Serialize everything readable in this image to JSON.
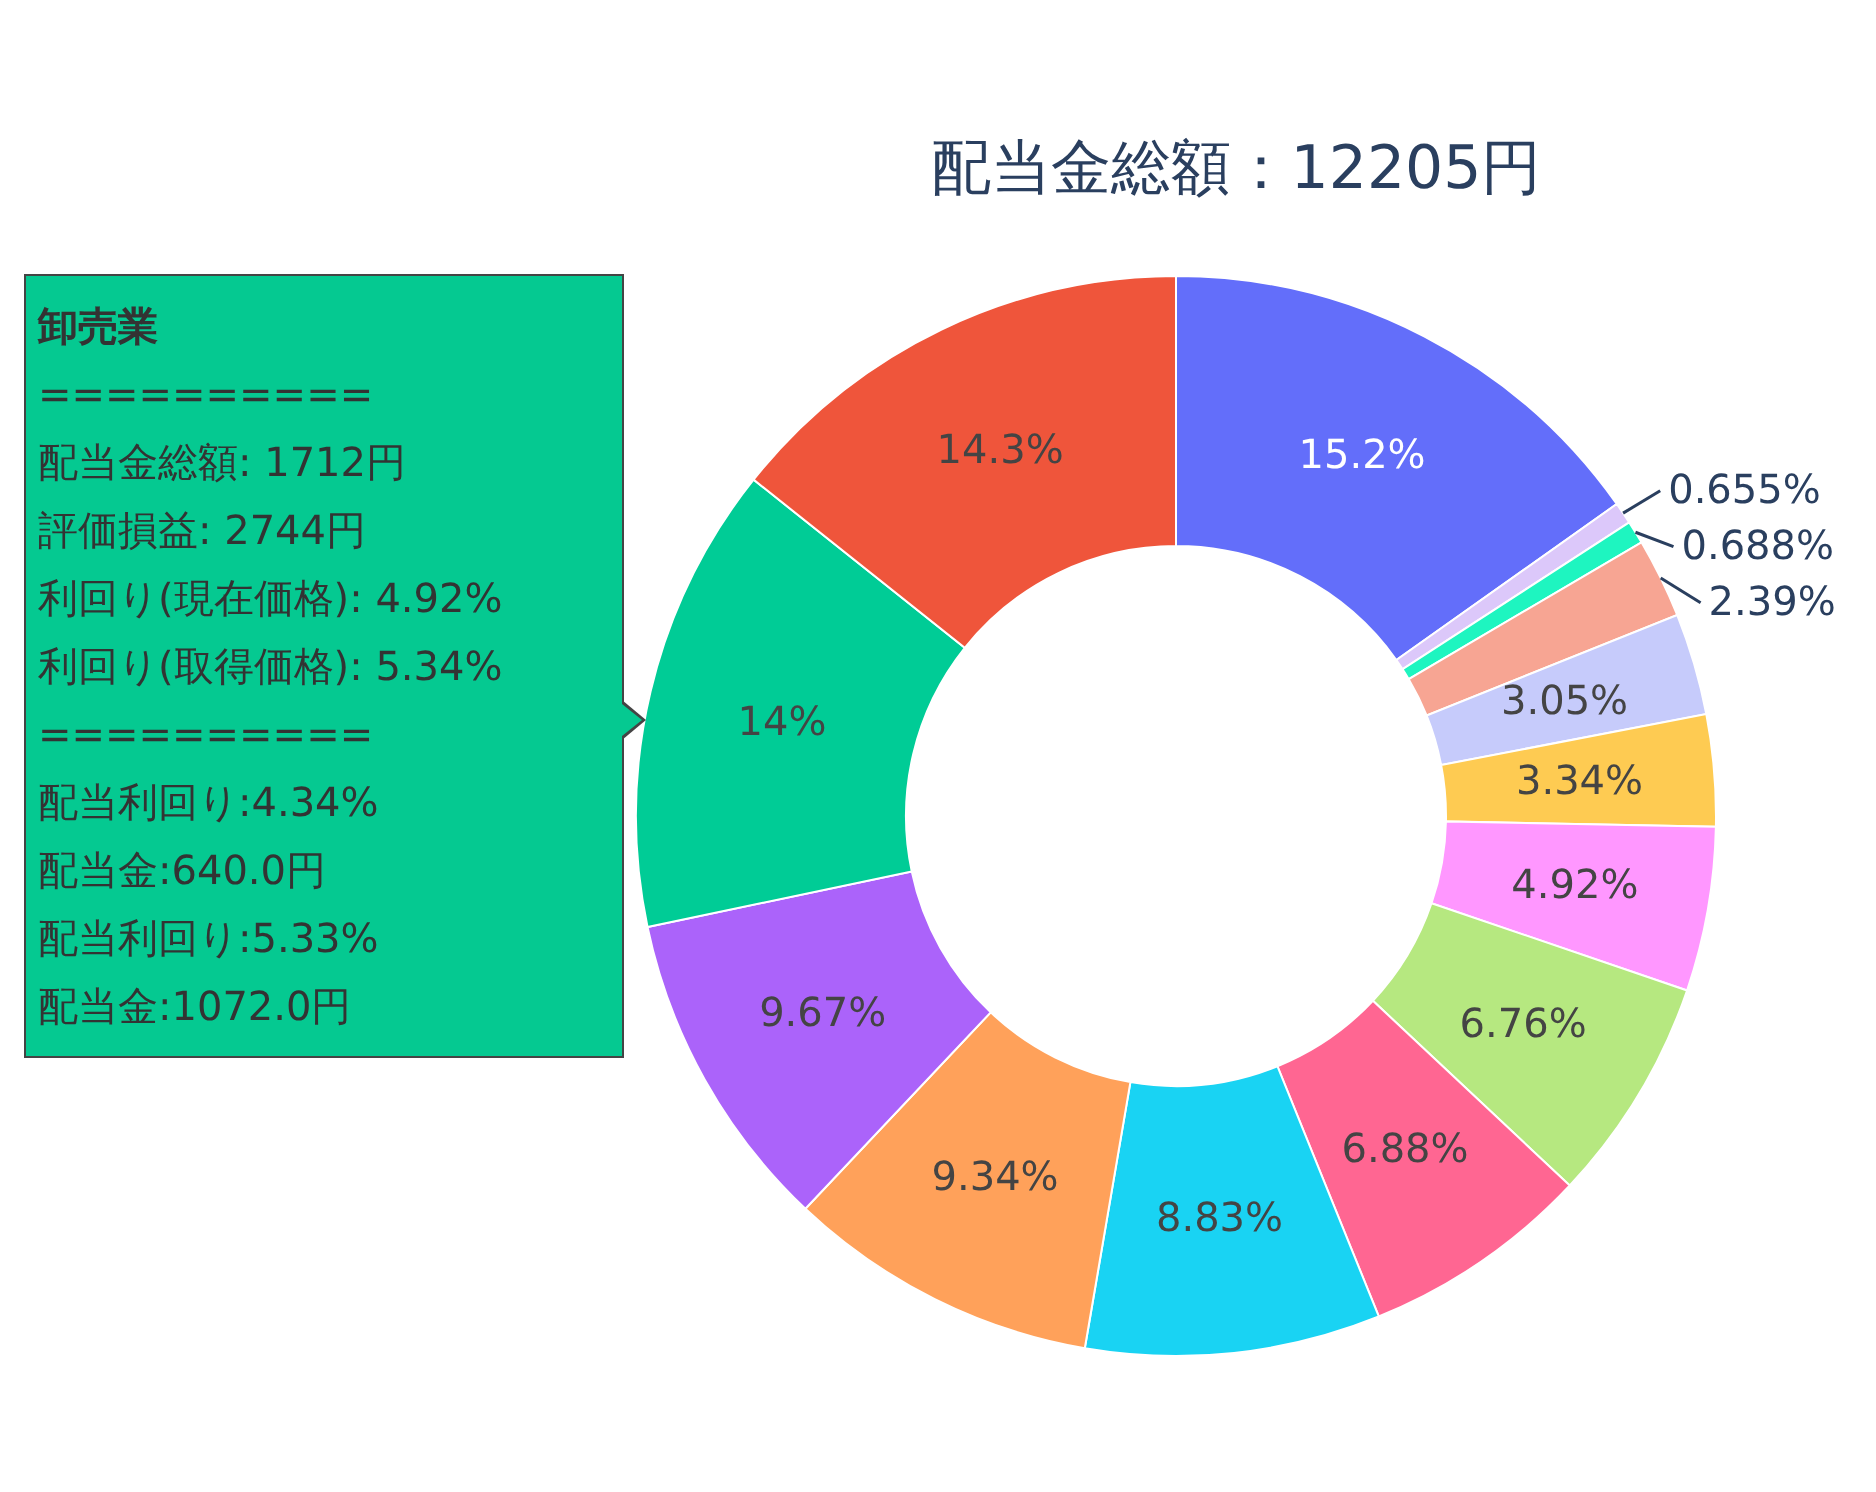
{
  "chart_data": {
    "type": "donut",
    "title": "配当金総額：12205円",
    "categories": [
      null,
      null,
      null,
      null,
      null,
      null,
      null,
      null,
      null,
      null,
      null,
      null,
      null,
      null
    ],
    "values": [
      15.2,
      0.655,
      0.688,
      2.39,
      3.05,
      3.34,
      4.92,
      6.76,
      6.88,
      8.83,
      9.34,
      9.67,
      14,
      14.3
    ],
    "value_labels": [
      "15.2%",
      "0.655%",
      "0.688%",
      "2.39%",
      "3.05%",
      "3.34%",
      "4.92%",
      "6.76%",
      "6.88%",
      "8.83%",
      "9.34%",
      "9.67%",
      "14%",
      "14.3%"
    ],
    "colors": [
      "#636efa",
      "#dcc8fa",
      "#1ef5c0",
      "#f7a593",
      "#c6cbfb",
      "#fecb52",
      "#ff97ff",
      "#b6e880",
      "#ff6692",
      "#19d3f3",
      "#ffa15a",
      "#ab63fa",
      "#00cc96",
      "#ef553b"
    ],
    "annotations": [
      "卸売業",
      "==========",
      "配当金総額: 1712円",
      "評価損益: 2744円",
      "利回り(現在価格): 4.92%",
      "利回り(取得価格): 5.34%",
      "==========",
      "配当利回り:4.34%",
      "配当金:640.0円",
      "配当利回り:5.33%",
      "配当金:1072.0円"
    ],
    "legend": false
  }
}
